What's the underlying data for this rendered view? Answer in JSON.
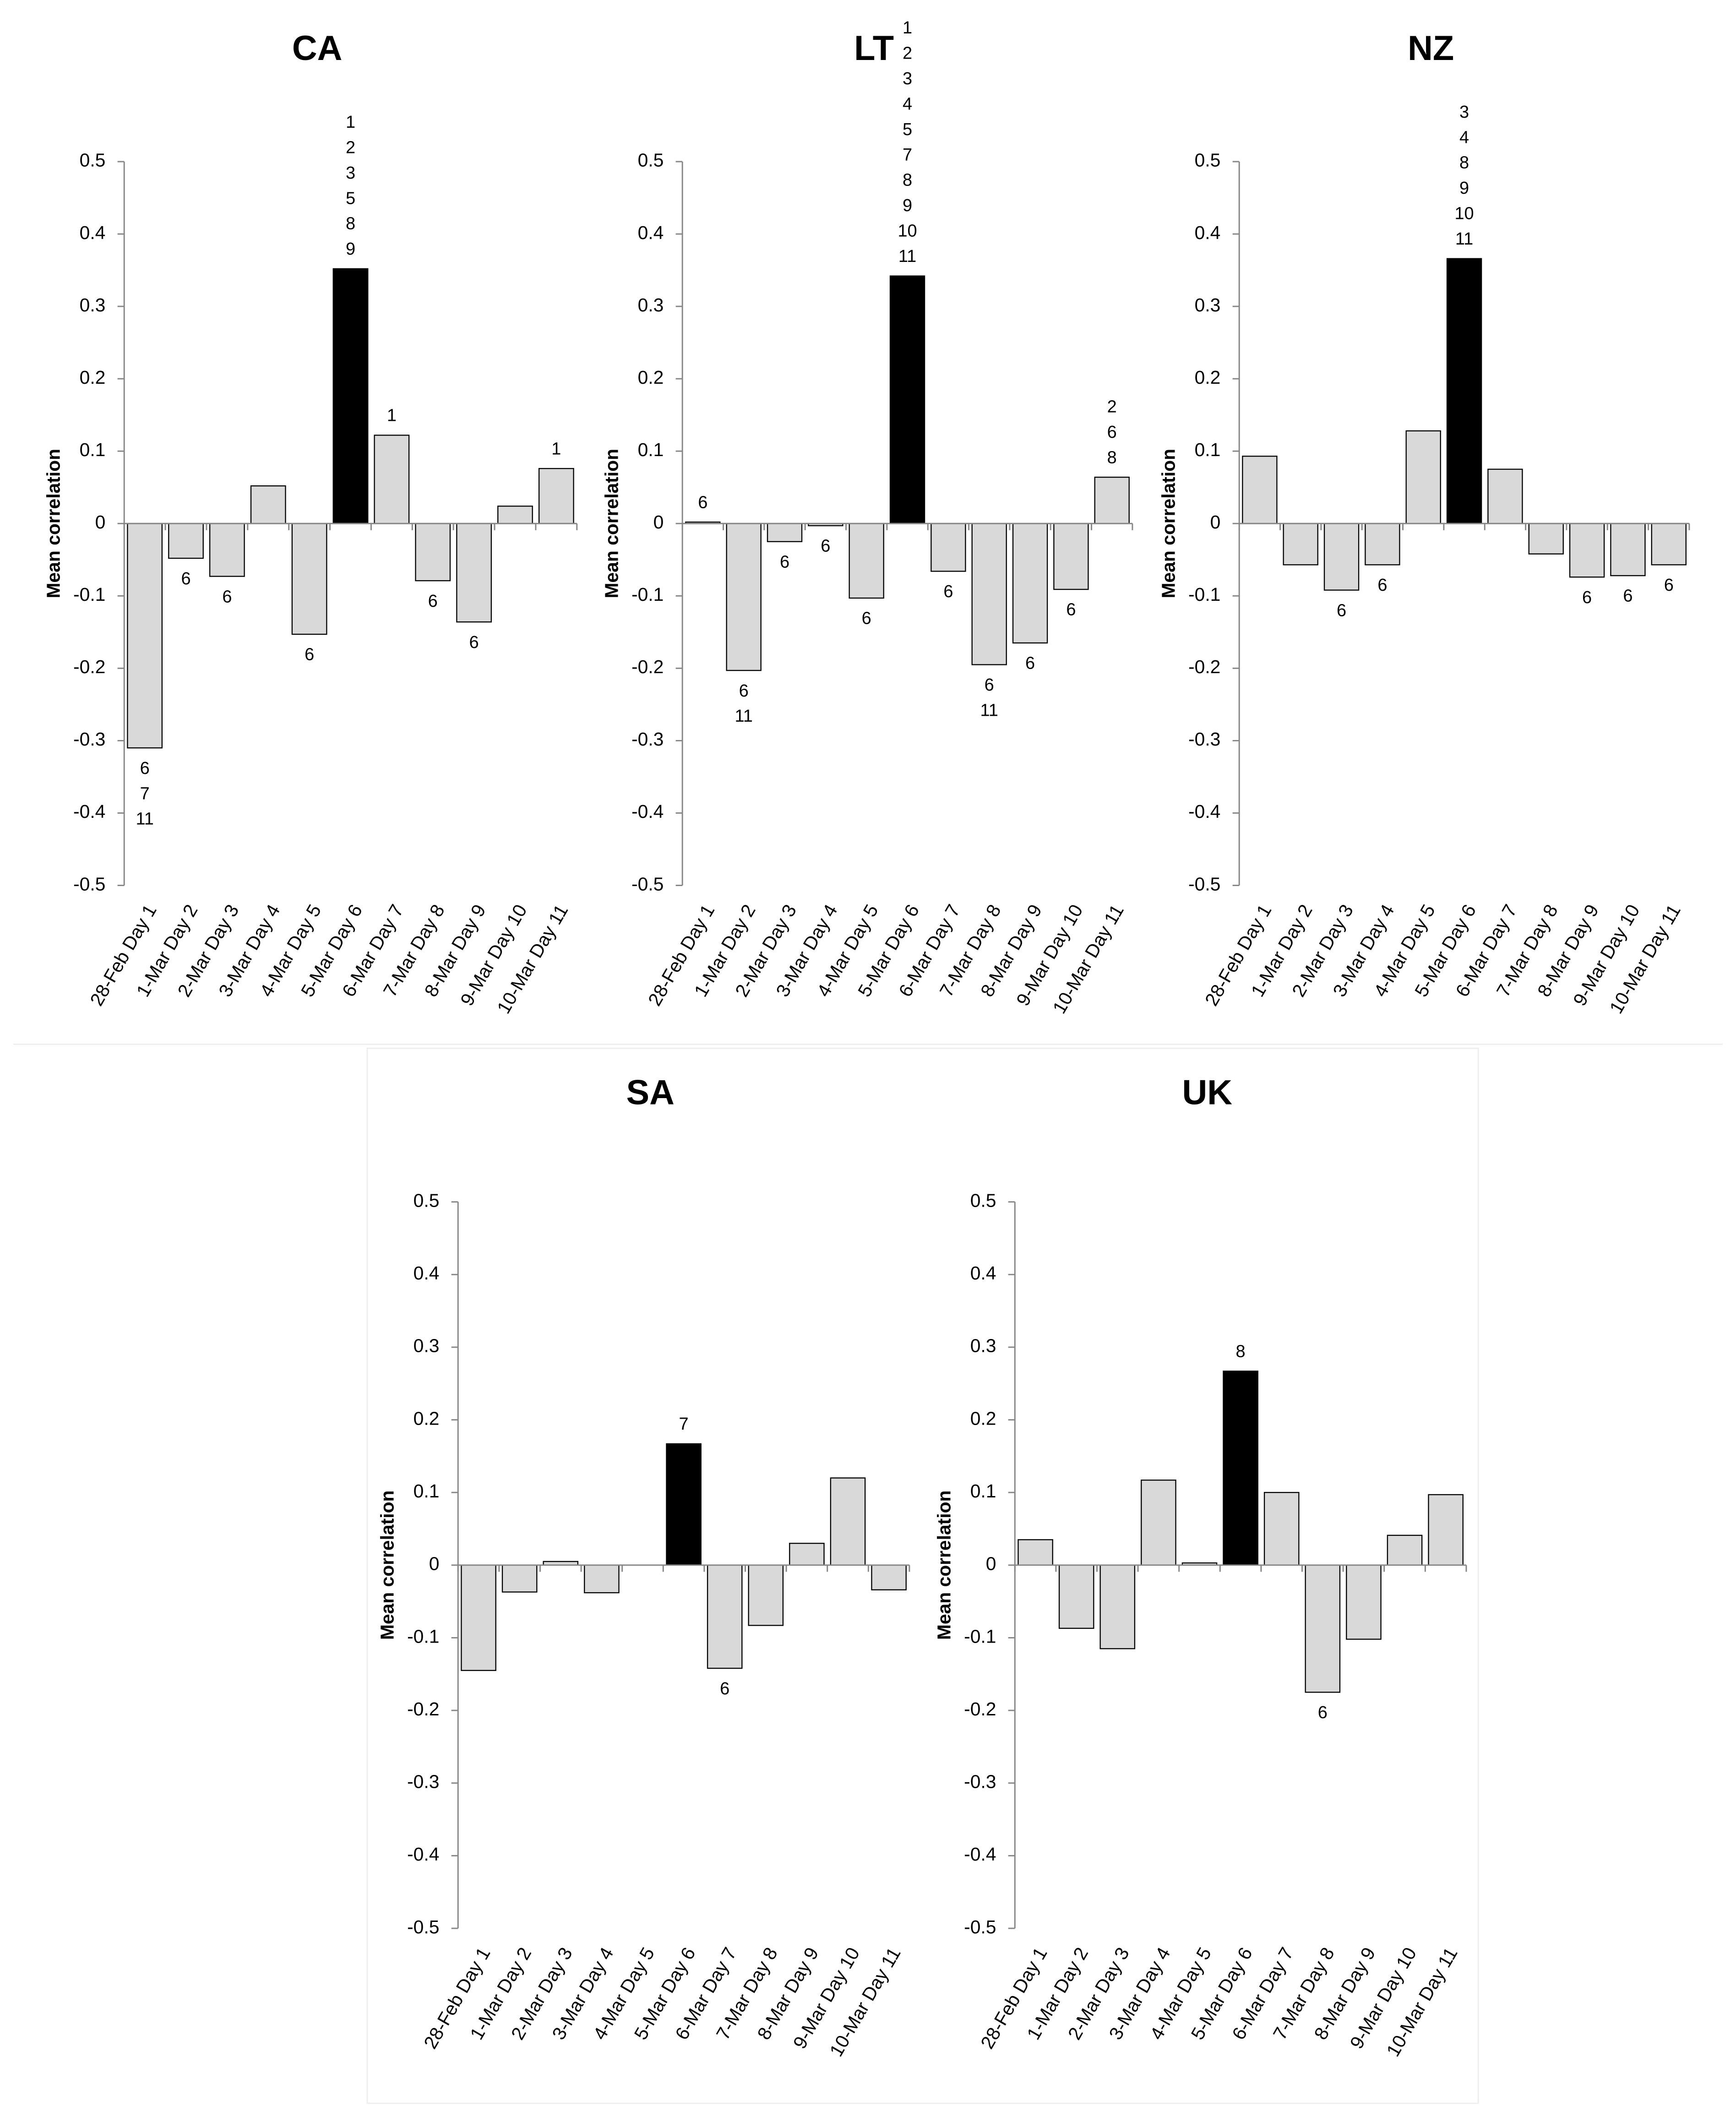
{
  "chart_data": [
    {
      "type": "bar",
      "title": "CA",
      "ylabel": "Mean correlation",
      "categories": [
        "28-Feb Day 1",
        "1-Mar Day 2",
        "2-Mar Day 3",
        "3-Mar Day 4",
        "4-Mar Day 5",
        "5-Mar Day 6",
        "6-Mar Day 7",
        "7-Mar Day 8",
        "8-Mar Day 9",
        "9-Mar Day 10",
        "10-Mar Day 11"
      ],
      "values": [
        -0.31,
        -0.048,
        -0.073,
        0.052,
        -0.153,
        0.352,
        0.122,
        -0.079,
        -0.136,
        0.024,
        0.076
      ],
      "colors": [
        "#d9d9d9",
        "#d9d9d9",
        "#d9d9d9",
        "#d9d9d9",
        "#d9d9d9",
        "#000000",
        "#d9d9d9",
        "#d9d9d9",
        "#d9d9d9",
        "#d9d9d9",
        "#d9d9d9"
      ],
      "annotations": [
        [
          6,
          7,
          11
        ],
        [
          6
        ],
        [
          6
        ],
        null,
        [
          6
        ],
        [
          1,
          2,
          3,
          5,
          8,
          9
        ],
        [
          1
        ],
        [
          6
        ],
        [
          6
        ],
        null,
        [
          1
        ]
      ],
      "ylim": [
        -0.5,
        0.5
      ],
      "yticks": [
        -0.5,
        -0.4,
        -0.3,
        -0.2,
        -0.1,
        0,
        0.1,
        0.2,
        0.3,
        0.4,
        0.5
      ]
    },
    {
      "type": "bar",
      "title": "LT",
      "ylabel": "Mean correlation",
      "categories": [
        "28-Feb Day 1",
        "1-Mar Day 2",
        "2-Mar Day 3",
        "3-Mar Day 4",
        "4-Mar Day 5",
        "5-Mar Day 6",
        "6-Mar Day 7",
        "7-Mar Day 8",
        "8-Mar Day 9",
        "9-Mar Day 10",
        "10-Mar Day 11"
      ],
      "values": [
        0.002,
        -0.203,
        -0.025,
        -0.003,
        -0.103,
        0.342,
        -0.066,
        -0.195,
        -0.165,
        -0.091,
        0.064
      ],
      "colors": [
        "#d9d9d9",
        "#d9d9d9",
        "#d9d9d9",
        "#d9d9d9",
        "#d9d9d9",
        "#000000",
        "#d9d9d9",
        "#d9d9d9",
        "#d9d9d9",
        "#d9d9d9",
        "#d9d9d9"
      ],
      "annotations": [
        [
          6
        ],
        [
          6,
          11
        ],
        [
          6
        ],
        [
          6
        ],
        [
          6
        ],
        [
          1,
          2,
          3,
          4,
          5,
          7,
          8,
          9,
          10,
          11
        ],
        [
          6
        ],
        [
          6,
          11
        ],
        [
          6
        ],
        [
          6
        ],
        [
          2,
          6,
          8
        ]
      ],
      "ylim": [
        -0.5,
        0.5
      ],
      "yticks": [
        -0.5,
        -0.4,
        -0.3,
        -0.2,
        -0.1,
        0,
        0.1,
        0.2,
        0.3,
        0.4,
        0.5
      ]
    },
    {
      "type": "bar",
      "title": "NZ",
      "ylabel": "Mean correlation",
      "categories": [
        "28-Feb Day 1",
        "1-Mar Day 2",
        "2-Mar Day 3",
        "3-Mar Day 4",
        "4-Mar Day 5",
        "5-Mar Day 6",
        "6-Mar Day 7",
        "7-Mar Day 8",
        "8-Mar Day 9",
        "9-Mar Day 10",
        "10-Mar Day 11"
      ],
      "values": [
        0.093,
        -0.057,
        -0.092,
        -0.057,
        0.128,
        0.366,
        0.075,
        -0.042,
        -0.074,
        -0.072,
        -0.057
      ],
      "colors": [
        "#d9d9d9",
        "#d9d9d9",
        "#d9d9d9",
        "#d9d9d9",
        "#d9d9d9",
        "#000000",
        "#d9d9d9",
        "#d9d9d9",
        "#d9d9d9",
        "#d9d9d9",
        "#d9d9d9"
      ],
      "annotations": [
        null,
        null,
        [
          6
        ],
        [
          6
        ],
        null,
        [
          3,
          4,
          8,
          9,
          10,
          11
        ],
        null,
        null,
        [
          6
        ],
        [
          6
        ],
        [
          6
        ]
      ],
      "ylim": [
        -0.5,
        0.5
      ],
      "yticks": [
        -0.5,
        -0.4,
        -0.3,
        -0.2,
        -0.1,
        0,
        0.1,
        0.2,
        0.3,
        0.4,
        0.5
      ]
    },
    {
      "type": "bar",
      "title": "SA",
      "ylabel": "Mean correlation",
      "categories": [
        "28-Feb Day 1",
        "1-Mar Day 2",
        "2-Mar Day 3",
        "3-Mar Day 4",
        "4-Mar Day 5",
        "5-Mar Day 6",
        "6-Mar Day 7",
        "7-Mar Day 8",
        "8-Mar Day 9",
        "9-Mar Day 10",
        "10-Mar Day 11"
      ],
      "values": [
        -0.145,
        -0.037,
        0.005,
        -0.038,
        0,
        0.167,
        -0.142,
        -0.083,
        0.03,
        0.12,
        -0.034
      ],
      "colors": [
        "#d9d9d9",
        "#d9d9d9",
        "#d9d9d9",
        "#d9d9d9",
        "#d9d9d9",
        "#000000",
        "#d9d9d9",
        "#d9d9d9",
        "#d9d9d9",
        "#d9d9d9",
        "#d9d9d9"
      ],
      "annotations": [
        null,
        null,
        null,
        null,
        null,
        [
          7
        ],
        [
          6
        ],
        null,
        null,
        null,
        null
      ],
      "ylim": [
        -0.5,
        0.5
      ],
      "yticks": [
        -0.5,
        -0.4,
        -0.3,
        -0.2,
        -0.1,
        0,
        0.1,
        0.2,
        0.3,
        0.4,
        0.5
      ]
    },
    {
      "type": "bar",
      "title": "UK",
      "ylabel": "Mean correlation",
      "categories": [
        "28-Feb Day 1",
        "1-Mar Day 2",
        "2-Mar Day 3",
        "3-Mar Day 4",
        "4-Mar Day 5",
        "5-Mar Day 6",
        "6-Mar Day 7",
        "7-Mar Day 8",
        "8-Mar Day 9",
        "9-Mar Day 10",
        "10-Mar Day 11"
      ],
      "values": [
        0.035,
        -0.087,
        -0.115,
        0.117,
        0.003,
        0.267,
        0.1,
        -0.175,
        -0.102,
        0.041,
        0.097
      ],
      "colors": [
        "#d9d9d9",
        "#d9d9d9",
        "#d9d9d9",
        "#d9d9d9",
        "#d9d9d9",
        "#000000",
        "#d9d9d9",
        "#d9d9d9",
        "#d9d9d9",
        "#d9d9d9",
        "#d9d9d9"
      ],
      "annotations": [
        null,
        null,
        null,
        null,
        null,
        [
          8
        ],
        null,
        [
          6
        ],
        null,
        null,
        null
      ],
      "ylim": [
        -0.5,
        0.5
      ],
      "yticks": [
        -0.5,
        -0.4,
        -0.3,
        -0.2,
        -0.1,
        0,
        0.1,
        0.2,
        0.3,
        0.4,
        0.5
      ]
    }
  ]
}
